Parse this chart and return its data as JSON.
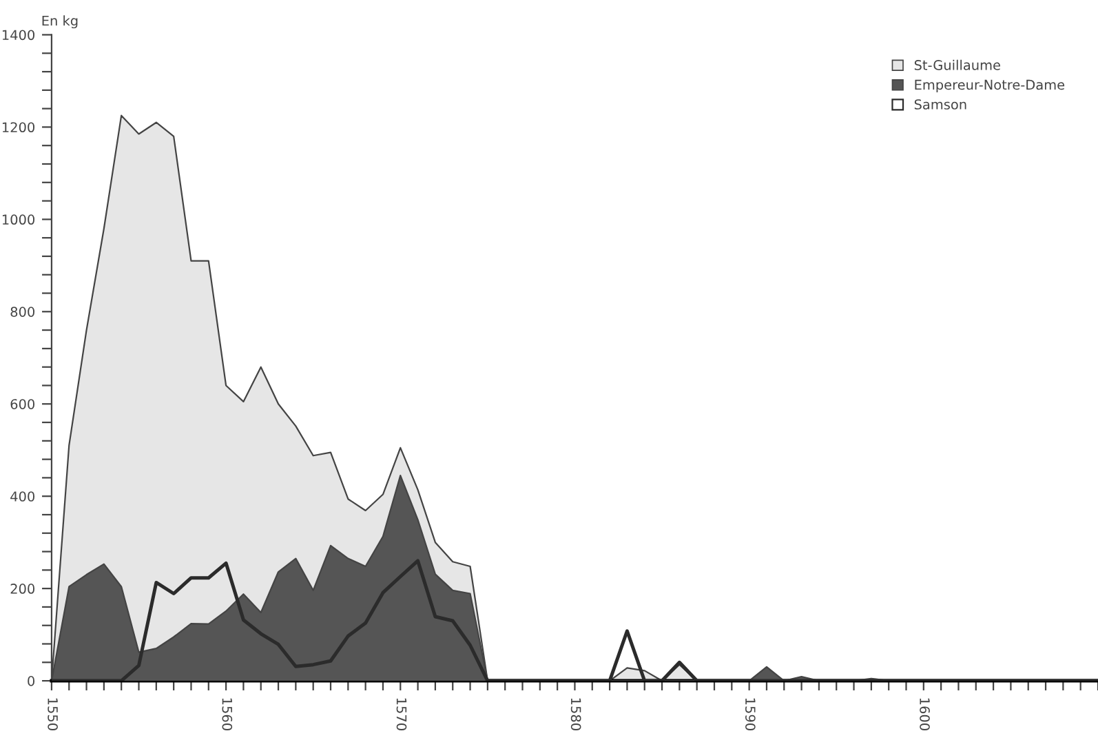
{
  "chart_data": {
    "type": "area",
    "ylabel": "En kg",
    "x": [
      1550,
      1551,
      1552,
      1553,
      1554,
      1555,
      1556,
      1557,
      1558,
      1559,
      1560,
      1561,
      1562,
      1563,
      1564,
      1565,
      1566,
      1567,
      1568,
      1569,
      1570,
      1571,
      1572,
      1573,
      1574,
      1575,
      1576,
      1577,
      1578,
      1579,
      1580,
      1581,
      1582,
      1583,
      1584,
      1585,
      1586,
      1587,
      1588,
      1589,
      1590,
      1591,
      1592,
      1593,
      1594,
      1595,
      1596,
      1597,
      1598,
      1599,
      1600,
      1601,
      1602,
      1603,
      1604,
      1605,
      1606,
      1607,
      1608,
      1609,
      1610
    ],
    "series": [
      {
        "name": "St-Guillaume",
        "color": "#e6e6e6",
        "values": [
          0,
          510,
          760,
          980,
          1225,
          1185,
          1210,
          1180,
          910,
          910,
          640,
          605,
          680,
          600,
          552,
          488,
          495,
          394,
          369,
          404,
          505,
          414,
          300,
          258,
          248,
          0,
          0,
          0,
          0,
          0,
          0,
          0,
          0,
          28,
          22,
          0,
          35,
          0,
          0,
          0,
          0,
          0,
          0,
          0,
          0,
          0,
          0,
          0,
          0,
          0,
          0,
          0,
          0,
          0,
          0,
          0,
          0,
          0,
          0,
          0,
          0
        ]
      },
      {
        "name": "Empereur-Notre-Dame",
        "color": "#555555",
        "values": [
          0,
          204,
          230,
          253,
          204,
          62,
          70,
          95,
          124,
          123,
          151,
          188,
          148,
          236,
          265,
          196,
          293,
          265,
          248,
          313,
          445,
          349,
          231,
          196,
          189,
          0,
          0,
          0,
          0,
          0,
          0,
          0,
          0,
          0,
          0,
          0,
          0,
          0,
          0,
          0,
          0,
          30,
          0,
          9,
          0,
          0,
          0,
          5,
          0,
          0,
          0,
          0,
          0,
          0,
          0,
          0,
          0,
          0,
          0,
          0,
          0
        ]
      },
      {
        "name": "Samson",
        "type": "line",
        "color": "#2b2b2b",
        "values": [
          0,
          0,
          0,
          0,
          0,
          33,
          213,
          189,
          223,
          223,
          255,
          132,
          102,
          79,
          31,
          35,
          43,
          97,
          125,
          191,
          226,
          260,
          139,
          130,
          77,
          0,
          0,
          0,
          0,
          0,
          0,
          0,
          0,
          108,
          0,
          0,
          40,
          0,
          0,
          0,
          0,
          0,
          0,
          0,
          0,
          0,
          0,
          0,
          0,
          0,
          0,
          0,
          0,
          0,
          0,
          0,
          0,
          0,
          0,
          0,
          0
        ]
      }
    ],
    "xlim": [
      1550,
      1610
    ],
    "xticks": [
      {
        "value": 1550,
        "label": "1550"
      },
      {
        "value": 1551,
        "label": null
      },
      {
        "value": 1552,
        "label": null
      },
      {
        "value": 1553,
        "label": null
      },
      {
        "value": 1554,
        "label": null
      },
      {
        "value": 1555,
        "label": null
      },
      {
        "value": 1556,
        "label": null
      },
      {
        "value": 1557,
        "label": null
      },
      {
        "value": 1558,
        "label": null
      },
      {
        "value": 1559,
        "label": null
      },
      {
        "value": 1560,
        "label": "1560"
      },
      {
        "value": 1561,
        "label": null
      },
      {
        "value": 1562,
        "label": null
      },
      {
        "value": 1563,
        "label": null
      },
      {
        "value": 1564,
        "label": null
      },
      {
        "value": 1565,
        "label": null
      },
      {
        "value": 1566,
        "label": null
      },
      {
        "value": 1567,
        "label": null
      },
      {
        "value": 1568,
        "label": null
      },
      {
        "value": 1569,
        "label": null
      },
      {
        "value": 1570,
        "label": "1570"
      },
      {
        "value": 1571,
        "label": null
      },
      {
        "value": 1572,
        "label": null
      },
      {
        "value": 1573,
        "label": null
      },
      {
        "value": 1574,
        "label": null
      },
      {
        "value": 1575,
        "label": null
      },
      {
        "value": 1576,
        "label": null
      },
      {
        "value": 1577,
        "label": null
      },
      {
        "value": 1578,
        "label": null
      },
      {
        "value": 1579,
        "label": null
      },
      {
        "value": 1580,
        "label": "1580"
      },
      {
        "value": 1581,
        "label": null
      },
      {
        "value": 1582,
        "label": null
      },
      {
        "value": 1583,
        "label": null
      },
      {
        "value": 1584,
        "label": null
      },
      {
        "value": 1585,
        "label": null
      },
      {
        "value": 1586,
        "label": null
      },
      {
        "value": 1587,
        "label": null
      },
      {
        "value": 1588,
        "label": null
      },
      {
        "value": 1589,
        "label": null
      },
      {
        "value": 1590,
        "label": "1590"
      },
      {
        "value": 1591,
        "label": null
      },
      {
        "value": 1592,
        "label": null
      },
      {
        "value": 1593,
        "label": null
      },
      {
        "value": 1594,
        "label": null
      },
      {
        "value": 1595,
        "label": null
      },
      {
        "value": 1596,
        "label": null
      },
      {
        "value": 1597,
        "label": null
      },
      {
        "value": 1598,
        "label": null
      },
      {
        "value": 1599,
        "label": null
      },
      {
        "value": 1600,
        "label": "1600"
      },
      {
        "value": 1601,
        "label": null
      },
      {
        "value": 1602,
        "label": null
      },
      {
        "value": 1603,
        "label": null
      },
      {
        "value": 1604,
        "label": null
      },
      {
        "value": 1605,
        "label": null
      },
      {
        "value": 1606,
        "label": null
      },
      {
        "value": 1607,
        "label": null
      },
      {
        "value": 1608,
        "label": null
      },
      {
        "value": 1609,
        "label": null
      },
      {
        "value": 1610,
        "label": null
      }
    ],
    "ylim": [
      0,
      1400
    ],
    "yticks": [
      0,
      {
        "value": 40,
        "label": null
      },
      {
        "value": 80,
        "label": null
      },
      {
        "value": 120,
        "label": null
      },
      {
        "value": 160,
        "label": null
      },
      200,
      {
        "value": 240,
        "label": null
      },
      {
        "value": 280,
        "label": null
      },
      {
        "value": 320,
        "label": null
      },
      {
        "value": 360,
        "label": null
      },
      400,
      {
        "value": 440,
        "label": null
      },
      {
        "value": 480,
        "label": null
      },
      {
        "value": 520,
        "label": null
      },
      {
        "value": 560,
        "label": null
      },
      600,
      {
        "value": 640,
        "label": null
      },
      {
        "value": 680,
        "label": null
      },
      {
        "value": 720,
        "label": null
      },
      {
        "value": 760,
        "label": null
      },
      800,
      {
        "value": 840,
        "label": null
      },
      {
        "value": 880,
        "label": null
      },
      {
        "value": 920,
        "label": null
      },
      {
        "value": 960,
        "label": null
      },
      1000,
      {
        "value": 1040,
        "label": null
      },
      {
        "value": 1080,
        "label": null
      },
      {
        "value": 1120,
        "label": null
      },
      {
        "value": 1160,
        "label": null
      },
      1200,
      {
        "value": 1240,
        "label": null
      },
      {
        "value": 1280,
        "label": null
      },
      {
        "value": 1320,
        "label": null
      },
      {
        "value": 1360,
        "label": null
      },
      1400
    ],
    "grid": false,
    "legend": "top right"
  }
}
